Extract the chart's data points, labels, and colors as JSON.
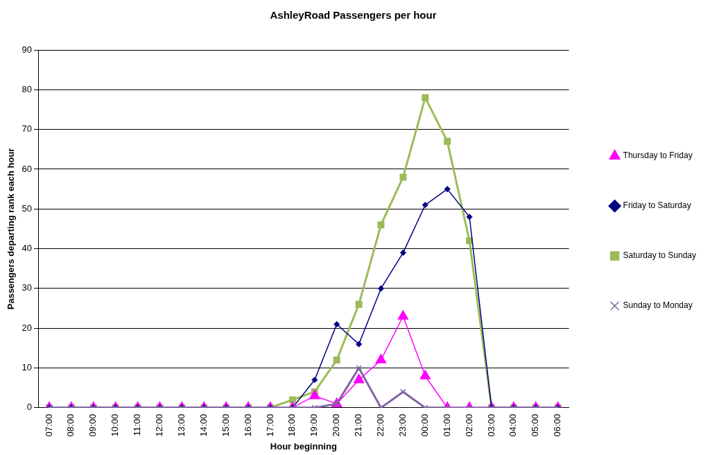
{
  "chart_data": {
    "type": "line",
    "title": "AshleyRoad Passengers per hour",
    "xlabel": "Hour beginning",
    "ylabel": "Passengers departing rank each hour",
    "categories": [
      "07:00",
      "08:00",
      "09:00",
      "10:00",
      "11:00",
      "12:00",
      "13:00",
      "14:00",
      "15:00",
      "16:00",
      "17:00",
      "18:00",
      "19:00",
      "20:00",
      "21:00",
      "22:00",
      "23:00",
      "00:00",
      "01:00",
      "02:00",
      "03:00",
      "04:00",
      "05:00",
      "06:00"
    ],
    "series": [
      {
        "name": "Thursday to Friday",
        "color": "#ff00ff",
        "marker": "triangle",
        "values": [
          0,
          0,
          0,
          0,
          0,
          0,
          0,
          0,
          0,
          0,
          0,
          0,
          3,
          1,
          7,
          12,
          23,
          8,
          0,
          0,
          0,
          0,
          0,
          0
        ]
      },
      {
        "name": "Friday to Saturday",
        "color": "#000080",
        "marker": "diamond",
        "values": [
          0,
          0,
          0,
          0,
          0,
          0,
          0,
          0,
          0,
          0,
          0,
          0,
          7,
          21,
          16,
          30,
          39,
          51,
          55,
          48,
          0,
          0,
          0,
          0
        ]
      },
      {
        "name": "Saturday to Sunday",
        "color": "#9bbb59",
        "marker": "square",
        "values": [
          0,
          0,
          0,
          0,
          0,
          0,
          0,
          0,
          0,
          0,
          0,
          2,
          4,
          12,
          26,
          46,
          58,
          78,
          67,
          42,
          0,
          0,
          0,
          0
        ]
      },
      {
        "name": "Sunday to Monday",
        "color": "#8064a2",
        "marker": "cross",
        "values": [
          0,
          0,
          0,
          0,
          0,
          0,
          0,
          0,
          0,
          0,
          0,
          0,
          0,
          1,
          10,
          0,
          4,
          0,
          0,
          0,
          0,
          0,
          0,
          0
        ]
      }
    ],
    "ylim": [
      0,
      90
    ],
    "yticks": [
      0,
      10,
      20,
      30,
      40,
      50,
      60,
      70,
      80,
      90
    ],
    "grid": "y",
    "legend": "right",
    "line_style": "solid"
  }
}
